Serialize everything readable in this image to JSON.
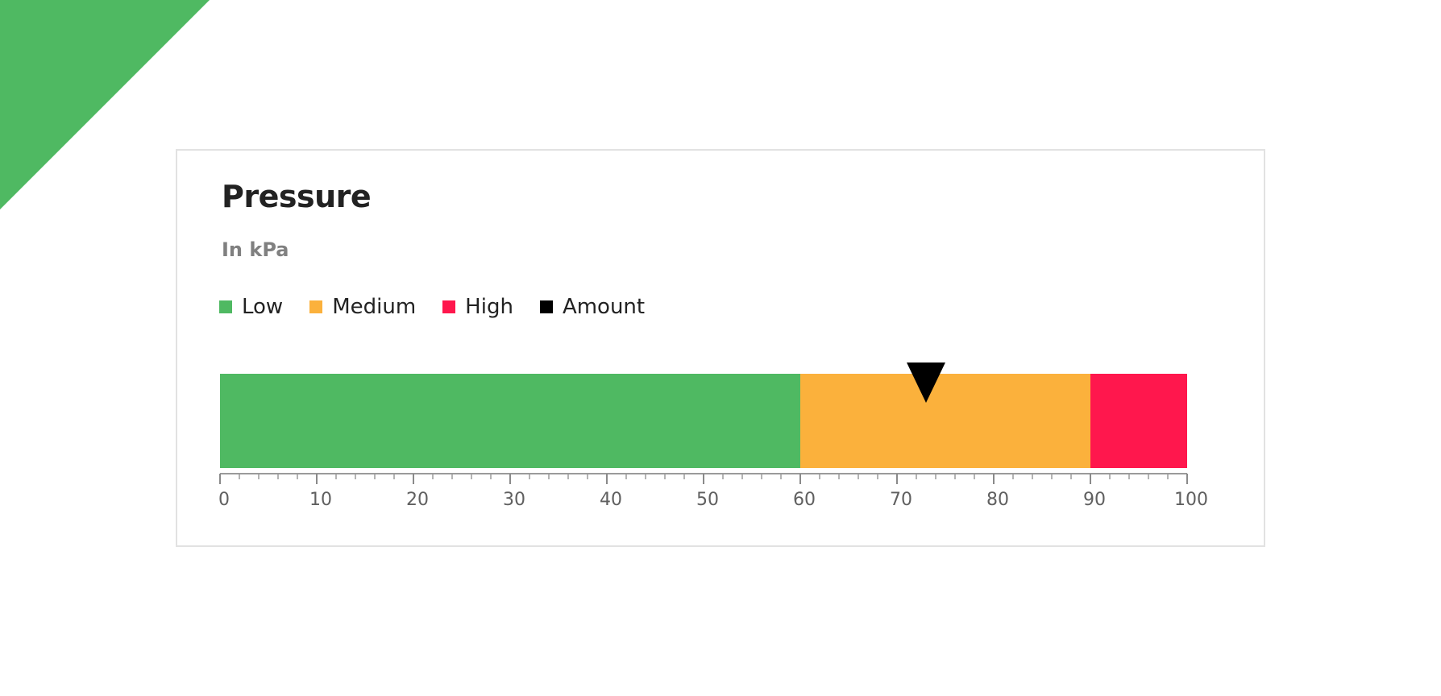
{
  "chart_data": {
    "type": "bullet",
    "title": "Pressure",
    "subtitle": "In kPa",
    "xlim": [
      0,
      100
    ],
    "ticks": [
      0,
      10,
      20,
      30,
      40,
      50,
      60,
      70,
      80,
      90,
      100
    ],
    "minor_tick_step": 2,
    "bands": [
      {
        "name": "Low",
        "from": 0,
        "to": 60,
        "color": "#4fb962"
      },
      {
        "name": "Medium",
        "from": 60,
        "to": 90,
        "color": "#fbb13c"
      },
      {
        "name": "High",
        "from": 90,
        "to": 100,
        "color": "#ff174d"
      }
    ],
    "marker": {
      "name": "Amount",
      "value": 73,
      "color": "#000000",
      "shape": "triangle-down"
    },
    "legend": [
      {
        "label": "Low",
        "color": "#4fb962"
      },
      {
        "label": "Medium",
        "color": "#fbb13c"
      },
      {
        "label": "High",
        "color": "#ff174d"
      },
      {
        "label": "Amount",
        "color": "#000000"
      }
    ],
    "legend_position": "top-left"
  },
  "decoration": {
    "corner_color": "#4fb962"
  }
}
